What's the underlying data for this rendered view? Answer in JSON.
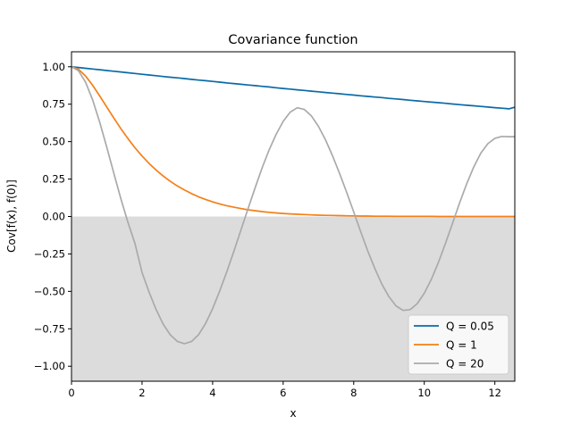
{
  "chart_data": {
    "type": "line",
    "title": "Covariance function",
    "xlabel": "x",
    "ylabel": "Cov[f(x), f(0)]",
    "xlim": [
      0,
      12.566
    ],
    "ylim": [
      -1.1,
      1.1
    ],
    "x_ticks": [
      "0",
      "2",
      "4",
      "6",
      "8",
      "10",
      "12"
    ],
    "y_ticks": [
      "1.00",
      "0.75",
      "0.50",
      "0.25",
      "0.00",
      "−0.25",
      "−0.50",
      "−0.75",
      "−1.00"
    ],
    "negative_region_shading": {
      "from": 0,
      "color": "#dcdcdc"
    },
    "grid": false,
    "legend_position": "lower-right",
    "x": [
      0,
      0.2,
      0.4,
      0.6,
      0.8,
      1,
      1.2,
      1.4,
      1.6,
      1.8,
      2,
      2.2,
      2.4,
      2.6,
      2.8,
      3,
      3.2,
      3.4,
      3.6,
      3.8,
      4,
      4.2,
      4.4,
      4.6,
      4.8,
      5,
      5.2,
      5.4,
      5.6,
      5.8,
      6,
      6.2,
      6.4,
      6.6,
      6.8,
      7,
      7.2,
      7.4,
      7.6,
      7.8,
      8,
      8.2,
      8.4,
      8.6,
      8.8,
      9,
      9.2,
      9.4,
      9.6,
      9.8,
      10,
      10.2,
      10.4,
      10.6,
      10.8,
      11,
      11.2,
      11.4,
      11.6,
      11.8,
      12,
      12.2,
      12.4,
      12.566
    ],
    "series": [
      {
        "name": "Q = 0.05",
        "color": "#0a6aa6",
        "values": [
          1,
          0.995,
          0.99,
          0.985,
          0.98,
          0.975,
          0.97,
          0.965,
          0.96,
          0.955,
          0.95,
          0.945,
          0.94,
          0.935,
          0.93,
          0.926,
          0.921,
          0.916,
          0.911,
          0.907,
          0.902,
          0.897,
          0.892,
          0.888,
          0.883,
          0.878,
          0.874,
          0.869,
          0.865,
          0.86,
          0.855,
          0.851,
          0.846,
          0.842,
          0.837,
          0.833,
          0.828,
          0.824,
          0.82,
          0.815,
          0.811,
          0.806,
          0.802,
          0.798,
          0.794,
          0.789,
          0.785,
          0.781,
          0.776,
          0.772,
          0.768,
          0.764,
          0.76,
          0.756,
          0.751,
          0.747,
          0.743,
          0.739,
          0.735,
          0.731,
          0.727,
          0.723,
          0.719,
          0.73
        ]
      },
      {
        "name": "Q = 1",
        "color": "#f57f17",
        "values": [
          1,
          0.983,
          0.938,
          0.876,
          0.805,
          0.731,
          0.657,
          0.586,
          0.52,
          0.459,
          0.404,
          0.354,
          0.31,
          0.27,
          0.235,
          0.204,
          0.177,
          0.153,
          0.132,
          0.114,
          0.098,
          0.084,
          0.072,
          0.062,
          0.053,
          0.045,
          0.039,
          0.033,
          0.028,
          0.024,
          0.02,
          0.017,
          0.015,
          0.013,
          0.011,
          0.009,
          0.008,
          0.007,
          0.006,
          0.005,
          0.004,
          0.003,
          0.003,
          0.002,
          0.002,
          0.002,
          0.001,
          0.001,
          0.001,
          0.001,
          0.001,
          0.001,
          0,
          0,
          0,
          0,
          0,
          0,
          0,
          0,
          0,
          0,
          0,
          0
        ]
      },
      {
        "name": "Q = 20",
        "color": "#aaaaaa",
        "values": [
          1,
          0.973,
          0.896,
          0.778,
          0.629,
          0.462,
          0.288,
          0.117,
          -0.04,
          -0.18,
          -0.373,
          -0.505,
          -0.622,
          -0.719,
          -0.79,
          -0.834,
          -0.849,
          -0.835,
          -0.79,
          -0.715,
          -0.615,
          -0.498,
          -0.37,
          -0.234,
          -0.092,
          0.05,
          0.189,
          0.322,
          0.443,
          0.548,
          0.635,
          0.697,
          0.726,
          0.715,
          0.672,
          0.602,
          0.512,
          0.405,
          0.287,
          0.161,
          0.03,
          -0.104,
          -0.232,
          -0.349,
          -0.452,
          -0.536,
          -0.597,
          -0.627,
          -0.622,
          -0.582,
          -0.513,
          -0.42,
          -0.307,
          -0.18,
          -0.046,
          0.09,
          0.217,
          0.33,
          0.423,
          0.486,
          0.522,
          0.535,
          0.533,
          0.533
        ]
      }
    ]
  }
}
